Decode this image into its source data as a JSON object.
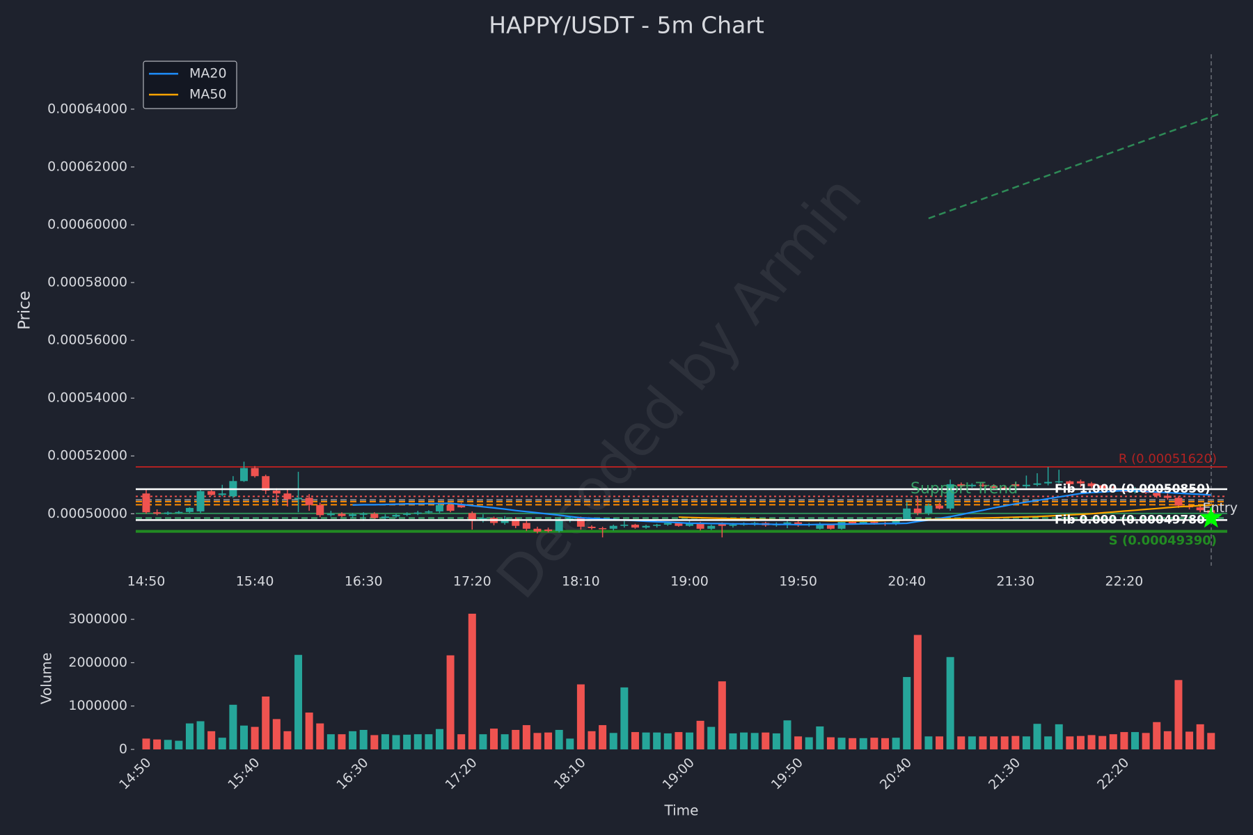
{
  "chart_data": {
    "type": "candlestick",
    "title": "HAPPY/USDT - 5m Chart",
    "y_label": "Price",
    "x_label": "Time",
    "watermark": "Decoded by Armin",
    "legend": "upper left",
    "up_color": "#26a69a",
    "down_color": "#ef5350",
    "categories": [
      "14:50",
      null,
      null,
      null,
      null,
      null,
      null,
      null,
      null,
      null,
      "15:40",
      null,
      null,
      null,
      null,
      null,
      null,
      null,
      null,
      null,
      "16:30",
      null,
      null,
      null,
      null,
      null,
      null,
      null,
      null,
      null,
      "17:20",
      null,
      null,
      null,
      null,
      null,
      null,
      null,
      null,
      null,
      "18:10",
      null,
      null,
      null,
      null,
      null,
      null,
      null,
      null,
      null,
      "19:00",
      null,
      null,
      null,
      null,
      null,
      null,
      null,
      null,
      null,
      "19:50",
      null,
      null,
      null,
      null,
      null,
      null,
      null,
      null,
      null,
      "20:40",
      null,
      null,
      null,
      null,
      null,
      null,
      null,
      null,
      null,
      "21:30",
      null,
      null,
      null,
      null,
      null,
      null,
      null,
      null,
      null,
      "22:20",
      null,
      null,
      null,
      null,
      null,
      null,
      null,
      null
    ],
    "open": [
      0.000507,
      0.0005005,
      0.0005,
      0.0005004,
      0.0005006,
      0.0005008,
      0.0005078,
      0.0005065,
      0.000506,
      0.0005113,
      0.0005158,
      0.000513,
      0.000508,
      0.000507,
      0.000505,
      0.0005055,
      0.000503,
      0.0004995,
      0.0005,
      0.0004992,
      0.0004998,
      0.0005,
      0.0004985,
      0.000499,
      0.0004996,
      0.0005,
      0.0005004,
      0.0005008,
      0.000503,
      0.0005032,
      0.0005002,
      0.0004975,
      0.0004985,
      0.0004968,
      0.0004982,
      0.0004968,
      0.0004948,
      0.0004945,
      0.000494,
      0.0004978,
      0.0004985,
      0.0004955,
      0.000495,
      0.0004948,
      0.0004958,
      0.0004962,
      0.0004952,
      0.0004958,
      0.0004962,
      0.0004968,
      0.0004958,
      0.0004968,
      0.0004948,
      0.0004965,
      0.0004958,
      0.0004962,
      0.0004965,
      0.0004968,
      0.000496,
      0.0004965,
      0.000497,
      0.000496,
      0.0004948,
      0.0004962,
      0.0004948,
      0.0004972,
      0.0004966,
      0.0004972,
      0.0004968,
      0.0004964,
      0.000498,
      0.0005018,
      0.0005002,
      0.0005028,
      0.0005018,
      0.0005102,
      0.0005095,
      0.00051,
      0.0005096,
      0.000509,
      0.0005102,
      0.0005095,
      0.00051,
      0.0005105,
      0.000511,
      0.0005112,
      0.0005112,
      0.0005105,
      0.0005098,
      0.0005088,
      0.000508,
      0.0005075,
      0.0005085,
      0.0005072,
      0.0005062,
      0.0005055,
      0.0005028,
      0.0005022,
      0.0005012
    ],
    "high": [
      0.0005087,
      0.0005015,
      0.0005008,
      0.000501,
      0.0005022,
      0.0005085,
      0.0005082,
      0.00051,
      0.000513,
      0.000518,
      0.0005165,
      0.0005135,
      0.0005088,
      0.0005085,
      0.0005145,
      0.0005068,
      0.0005038,
      0.000501,
      0.0005005,
      0.0005002,
      0.0005005,
      0.0005005,
      0.0004998,
      0.0005,
      0.0005005,
      0.000501,
      0.0005012,
      0.0005038,
      0.0005035,
      0.0005038,
      0.0005008,
      0.0004998,
      0.000499,
      0.0004992,
      0.0004988,
      0.0004975,
      0.0004955,
      0.0004952,
      0.0004985,
      0.0004992,
      0.000499,
      0.000496,
      0.0004955,
      0.0004962,
      0.0004975,
      0.0004965,
      0.0004962,
      0.0004965,
      0.0004972,
      0.0004972,
      0.0004975,
      0.0004972,
      0.0004962,
      0.000497,
      0.0004968,
      0.000497,
      0.0004972,
      0.0004972,
      0.000497,
      0.0004975,
      0.0004975,
      0.0004968,
      0.000497,
      0.0004965,
      0.0004978,
      0.0004978,
      0.0004978,
      0.0004976,
      0.0004972,
      0.0004985,
      0.000504,
      0.0005062,
      0.0005035,
      0.0005038,
      0.0005118,
      0.0005108,
      0.0005105,
      0.0005108,
      0.0005102,
      0.0005098,
      0.0005108,
      0.0005132,
      0.000514,
      0.0005162,
      0.0005152,
      0.0005115,
      0.0005118,
      0.000511,
      0.0005102,
      0.0005095,
      0.0005088,
      0.0005092,
      0.000509,
      0.0005078,
      0.000507,
      0.000506,
      0.0005035,
      0.0005028,
      0.0005018
    ],
    "low": [
      0.0005,
      0.0004995,
      0.0004996,
      0.0005,
      0.0005002,
      0.0005002,
      0.0005062,
      0.000506,
      0.0005055,
      0.000511,
      0.0005125,
      0.0005068,
      0.000503,
      0.0005025,
      0.0005005,
      0.000501,
      0.0004988,
      0.000499,
      0.0004988,
      0.0004985,
      0.0004975,
      0.0004982,
      0.000498,
      0.0004985,
      0.0004992,
      0.0004995,
      0.0005,
      0.0005002,
      0.0005005,
      0.000502,
      0.0004945,
      0.000497,
      0.000496,
      0.0004962,
      0.000495,
      0.000494,
      0.0004932,
      0.0004935,
      0.0004935,
      0.000497,
      0.0004945,
      0.0004945,
      0.0004918,
      0.0004942,
      0.0004952,
      0.0004948,
      0.0004948,
      0.0004952,
      0.0004958,
      0.0004955,
      0.0004955,
      0.0004942,
      0.0004944,
      0.0004918,
      0.0004952,
      0.0004958,
      0.0004958,
      0.0004955,
      0.0004955,
      0.000495,
      0.0004955,
      0.0004955,
      0.0004945,
      0.0004945,
      0.0004945,
      0.0004962,
      0.0004962,
      0.0004962,
      0.0004958,
      0.000496,
      0.0004975,
      0.0004995,
      0.0004995,
      0.0005015,
      0.000501,
      0.0005088,
      0.000509,
      0.0005092,
      0.0005085,
      0.0005082,
      0.000509,
      0.0005088,
      0.0005095,
      0.0005098,
      0.0005105,
      0.0005095,
      0.0005092,
      0.0005088,
      0.0005082,
      0.0005075,
      0.000507,
      0.000507,
      0.0005068,
      0.0005055,
      0.0005048,
      0.000502,
      0.0005015,
      0.0005005,
      0.0004995
    ],
    "close": [
      0.0005005,
      0.0005,
      0.0005004,
      0.0005006,
      0.000502,
      0.0005078,
      0.0005065,
      0.000507,
      0.0005113,
      0.0005158,
      0.000513,
      0.000508,
      0.000507,
      0.000505,
      0.0005055,
      0.000503,
      0.0004995,
      0.0005,
      0.0004992,
      0.0004998,
      0.0005,
      0.0004985,
      0.000499,
      0.0004996,
      0.0005,
      0.0005004,
      0.0005008,
      0.000503,
      0.000501,
      0.0005022,
      0.0004975,
      0.0004985,
      0.0004968,
      0.0004982,
      0.0004958,
      0.0004948,
      0.0004938,
      0.000494,
      0.0004978,
      0.0004985,
      0.0004955,
      0.000495,
      0.0004948,
      0.0004958,
      0.0004962,
      0.0004952,
      0.0004958,
      0.0004962,
      0.0004968,
      0.0004958,
      0.0004968,
      0.0004948,
      0.0004958,
      0.0004958,
      0.0004962,
      0.0004965,
      0.0004968,
      0.000496,
      0.0004965,
      0.000497,
      0.000496,
      0.0004964,
      0.0004962,
      0.0004948,
      0.0004972,
      0.0004966,
      0.0004972,
      0.0004968,
      0.0004964,
      0.000498,
      0.0005018,
      0.0005002,
      0.0005028,
      0.0005018,
      0.0005102,
      0.0005095,
      0.00051,
      0.0005096,
      0.000509,
      0.0005086,
      0.0005095,
      0.00051,
      0.0005105,
      0.000511,
      0.0005112,
      0.0005102,
      0.0005105,
      0.0005095,
      0.0005088,
      0.000508,
      0.0005075,
      0.0005085,
      0.0005072,
      0.0005062,
      0.0005055,
      0.0005028,
      0.0005022,
      0.0005012,
      0.0005002
    ],
    "series": [
      {
        "name": "MA20",
        "color": "#1e90ff",
        "values": [
          null,
          null,
          null,
          null,
          null,
          null,
          null,
          null,
          null,
          null,
          null,
          null,
          null,
          null,
          null,
          null,
          null,
          null,
          null,
          0.000503,
          0.0005031,
          0.0005031,
          0.0005032,
          0.0005033,
          0.0005034,
          0.0005034,
          0.0005035,
          0.0005035,
          0.0005036,
          0.0005032,
          0.0005028,
          0.0005024,
          0.000502,
          0.0005016,
          0.0005011,
          0.0005007,
          0.0005003,
          0.0004999,
          0.0004995,
          0.000499,
          0.0004986,
          0.0004984,
          0.0004982,
          0.000498,
          0.0004978,
          0.0004976,
          0.0004974,
          0.0004972,
          0.0004971,
          0.0004969,
          0.0004967,
          0.0004967,
          0.0004966,
          0.0004966,
          0.0004965,
          0.0004965,
          0.0004964,
          0.0004964,
          0.0004963,
          0.0004963,
          0.0004962,
          0.0004962,
          0.0004963,
          0.0004963,
          0.0004964,
          0.0004964,
          0.0004965,
          0.0004965,
          0.0004966,
          0.0004966,
          0.0004967,
          0.0004973,
          0.0004978,
          0.0004984,
          0.000499,
          0.0004997,
          0.0005005,
          0.0005012,
          0.000502,
          0.0005027,
          0.0005034,
          0.000504,
          0.0005046,
          0.0005052,
          0.0005058,
          0.0005064,
          0.000507,
          0.0005073,
          0.0005075,
          0.0005078,
          0.000508,
          0.0005079,
          0.0005077,
          0.0005075,
          0.0005073,
          0.0005071,
          0.0005069,
          0.0005067,
          0.0005065
        ]
      },
      {
        "name": "MA50",
        "color": "#ffa500",
        "values": [
          null,
          null,
          null,
          null,
          null,
          null,
          null,
          null,
          null,
          null,
          null,
          null,
          null,
          null,
          null,
          null,
          null,
          null,
          null,
          null,
          null,
          null,
          null,
          null,
          null,
          null,
          null,
          null,
          null,
          null,
          null,
          null,
          null,
          null,
          null,
          null,
          null,
          null,
          null,
          null,
          null,
          null,
          null,
          null,
          null,
          null,
          null,
          null,
          null,
          0.0004988,
          0.0004987,
          0.0004986,
          0.0004985,
          0.0004984,
          0.0004983,
          0.0004982,
          0.0004981,
          0.000498,
          0.0004979,
          0.0004978,
          0.0004977,
          0.0004976,
          0.0004976,
          0.0004975,
          0.0004975,
          0.0004975,
          0.0004975,
          0.0004975,
          0.0004976,
          0.0004977,
          0.0004978,
          0.0004979,
          0.000498,
          0.0004981,
          0.0004982,
          0.0004983,
          0.0004984,
          0.0004985,
          0.0004986,
          0.0004987,
          0.0004988,
          0.0004989,
          0.000499,
          0.0004992,
          0.0004994,
          0.0004996,
          0.0004998,
          0.0005,
          0.0005003,
          0.0005006,
          0.0005009,
          0.0005012,
          0.0005015,
          0.0005018,
          0.0005021,
          0.0005024,
          0.0005026,
          0.0005028,
          0.000503
        ]
      }
    ],
    "resistance": {
      "label": "R (0.00051620)",
      "value": 0.0005162,
      "color": "#b22222"
    },
    "support": {
      "label": "S (0.00049390)",
      "value": 0.0004939,
      "color": "#228b22"
    },
    "fib_levels": [
      {
        "label": "Fib 1.000 (0.00050850)",
        "value": 0.0005085,
        "color": "#ffffff"
      },
      {
        "label": "Fib 0.000 (0.00049780)",
        "value": 0.0004978,
        "color": "#ffffff"
      }
    ],
    "levels": [
      {
        "value": 0.000506,
        "color": "#ef5350",
        "style": "dotted"
      },
      {
        "value": 0.0005048,
        "color": "#8a8f98",
        "style": "dashed"
      },
      {
        "value": 0.0005042,
        "color": "#ff8c00",
        "style": "dashed"
      },
      {
        "value": 0.0005031,
        "color": "#ff8c00",
        "style": "dashed"
      },
      {
        "value": 0.0005001,
        "color": "#2e8b57",
        "style": "solid"
      },
      {
        "value": 0.0004985,
        "color": "#3cb371",
        "style": "dashed"
      }
    ],
    "trend": {
      "label": "Support Trend",
      "color": "#2e8b57",
      "x": [
        72,
        99
      ],
      "values": [
        0.0006022,
        0.0006387
      ]
    },
    "entry": {
      "label": "Entry",
      "value": 0.0004985,
      "color": "#00ff00"
    },
    "ylim": [
      0.000482,
      0.000659
    ],
    "yticks": [
      {
        "value": 0.0005,
        "label": "0.00050000"
      },
      {
        "value": 0.00052,
        "label": "0.00052000"
      },
      {
        "value": 0.00054,
        "label": "0.00054000"
      },
      {
        "value": 0.00056,
        "label": "0.00056000"
      },
      {
        "value": 0.00058,
        "label": "0.00058000"
      },
      {
        "value": 0.0006,
        "label": "0.00060000"
      },
      {
        "value": 0.00062,
        "label": "0.00062000"
      },
      {
        "value": 0.00064,
        "label": "0.00064000"
      }
    ],
    "volume": {
      "type": "bar",
      "y_label": "Volume",
      "values": [
        250000,
        230000,
        220000,
        200000,
        600000,
        650000,
        420000,
        270000,
        1030000,
        550000,
        520000,
        1220000,
        700000,
        420000,
        2180000,
        850000,
        600000,
        350000,
        350000,
        420000,
        450000,
        330000,
        350000,
        330000,
        340000,
        350000,
        350000,
        470000,
        2170000,
        350000,
        3130000,
        350000,
        480000,
        350000,
        450000,
        560000,
        380000,
        390000,
        450000,
        250000,
        1500000,
        420000,
        560000,
        380000,
        1430000,
        400000,
        390000,
        390000,
        370000,
        400000,
        390000,
        660000,
        520000,
        1570000,
        370000,
        390000,
        380000,
        390000,
        370000,
        670000,
        300000,
        280000,
        530000,
        280000,
        270000,
        260000,
        260000,
        270000,
        260000,
        270000,
        1670000,
        2640000,
        300000,
        300000,
        2130000,
        300000,
        300000,
        300000,
        300000,
        300000,
        310000,
        300000,
        590000,
        300000,
        580000,
        300000,
        310000,
        330000,
        310000,
        350000,
        400000,
        400000,
        380000,
        630000,
        420000,
        1600000,
        410000,
        580000,
        380000
      ],
      "ylim": [
        0,
        3290000
      ],
      "yticks": [
        0,
        1000000,
        2000000,
        3000000
      ]
    }
  }
}
